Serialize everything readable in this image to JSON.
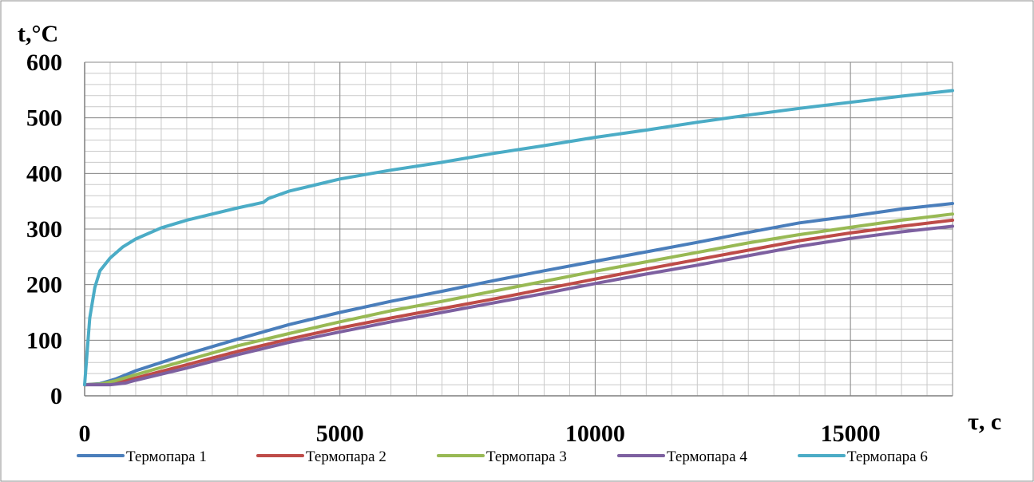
{
  "chart_data": {
    "type": "line",
    "title": "",
    "xlabel": "τ, c",
    "ylabel": "t,°C",
    "xlim": [
      0,
      17000
    ],
    "ylim": [
      0,
      600
    ],
    "x_ticks": [
      0,
      5000,
      10000,
      15000
    ],
    "y_ticks": [
      0,
      100,
      200,
      300,
      400,
      500,
      600
    ],
    "x_minor_step": 500,
    "y_minor_step": 20,
    "grid": true,
    "legend_position": "bottom",
    "series": [
      {
        "name": "Термопара 1",
        "color": "#4a7ebb",
        "points": [
          [
            0,
            20
          ],
          [
            300,
            22
          ],
          [
            600,
            30
          ],
          [
            1000,
            45
          ],
          [
            2000,
            75
          ],
          [
            3000,
            102
          ],
          [
            4000,
            128
          ],
          [
            5000,
            150
          ],
          [
            6000,
            170
          ],
          [
            7000,
            188
          ],
          [
            8000,
            207
          ],
          [
            9000,
            225
          ],
          [
            10000,
            242
          ],
          [
            11000,
            259
          ],
          [
            12000,
            276
          ],
          [
            13000,
            294
          ],
          [
            14000,
            311
          ],
          [
            15000,
            323
          ],
          [
            16000,
            336
          ],
          [
            17000,
            346
          ]
        ]
      },
      {
        "name": "Термопара 2",
        "color": "#be4b48",
        "points": [
          [
            0,
            20
          ],
          [
            400,
            21
          ],
          [
            700,
            25
          ],
          [
            1000,
            32
          ],
          [
            2000,
            56
          ],
          [
            3000,
            80
          ],
          [
            4000,
            102
          ],
          [
            5000,
            122
          ],
          [
            6000,
            140
          ],
          [
            7000,
            157
          ],
          [
            8000,
            174
          ],
          [
            9000,
            192
          ],
          [
            10000,
            210
          ],
          [
            11000,
            228
          ],
          [
            12000,
            245
          ],
          [
            13000,
            262
          ],
          [
            14000,
            279
          ],
          [
            15000,
            293
          ],
          [
            16000,
            305
          ],
          [
            17000,
            316
          ]
        ]
      },
      {
        "name": "Термопара 3",
        "color": "#98b954",
        "points": [
          [
            0,
            20
          ],
          [
            300,
            21
          ],
          [
            600,
            27
          ],
          [
            1000,
            38
          ],
          [
            2000,
            64
          ],
          [
            3000,
            90
          ],
          [
            4000,
            112
          ],
          [
            5000,
            133
          ],
          [
            6000,
            153
          ],
          [
            7000,
            170
          ],
          [
            8000,
            188
          ],
          [
            9000,
            206
          ],
          [
            10000,
            224
          ],
          [
            11000,
            241
          ],
          [
            12000,
            258
          ],
          [
            13000,
            275
          ],
          [
            14000,
            290
          ],
          [
            15000,
            303
          ],
          [
            16000,
            316
          ],
          [
            17000,
            327
          ]
        ]
      },
      {
        "name": "Термопара 4",
        "color": "#7d60a0",
        "points": [
          [
            0,
            20
          ],
          [
            500,
            20
          ],
          [
            800,
            23
          ],
          [
            1000,
            28
          ],
          [
            2000,
            50
          ],
          [
            3000,
            74
          ],
          [
            4000,
            96
          ],
          [
            5000,
            115
          ],
          [
            6000,
            133
          ],
          [
            7000,
            150
          ],
          [
            8000,
            167
          ],
          [
            9000,
            184
          ],
          [
            10000,
            202
          ],
          [
            11000,
            219
          ],
          [
            12000,
            235
          ],
          [
            13000,
            252
          ],
          [
            14000,
            269
          ],
          [
            15000,
            283
          ],
          [
            16000,
            295
          ],
          [
            17000,
            305
          ]
        ]
      },
      {
        "name": "Термопара 6",
        "color": "#4bacc6",
        "points": [
          [
            0,
            20
          ],
          [
            50,
            80
          ],
          [
            100,
            140
          ],
          [
            200,
            195
          ],
          [
            300,
            225
          ],
          [
            500,
            248
          ],
          [
            750,
            268
          ],
          [
            1000,
            282
          ],
          [
            1500,
            302
          ],
          [
            2000,
            316
          ],
          [
            2500,
            327
          ],
          [
            3000,
            338
          ],
          [
            3500,
            348
          ],
          [
            3600,
            355
          ],
          [
            4000,
            368
          ],
          [
            4500,
            379
          ],
          [
            5000,
            390
          ],
          [
            5500,
            398
          ],
          [
            6000,
            406
          ],
          [
            7000,
            420
          ],
          [
            8000,
            436
          ],
          [
            9000,
            450
          ],
          [
            10000,
            465
          ],
          [
            11000,
            478
          ],
          [
            12000,
            492
          ],
          [
            13000,
            505
          ],
          [
            14000,
            517
          ],
          [
            15000,
            528
          ],
          [
            16000,
            539
          ],
          [
            17000,
            549
          ]
        ]
      }
    ]
  }
}
